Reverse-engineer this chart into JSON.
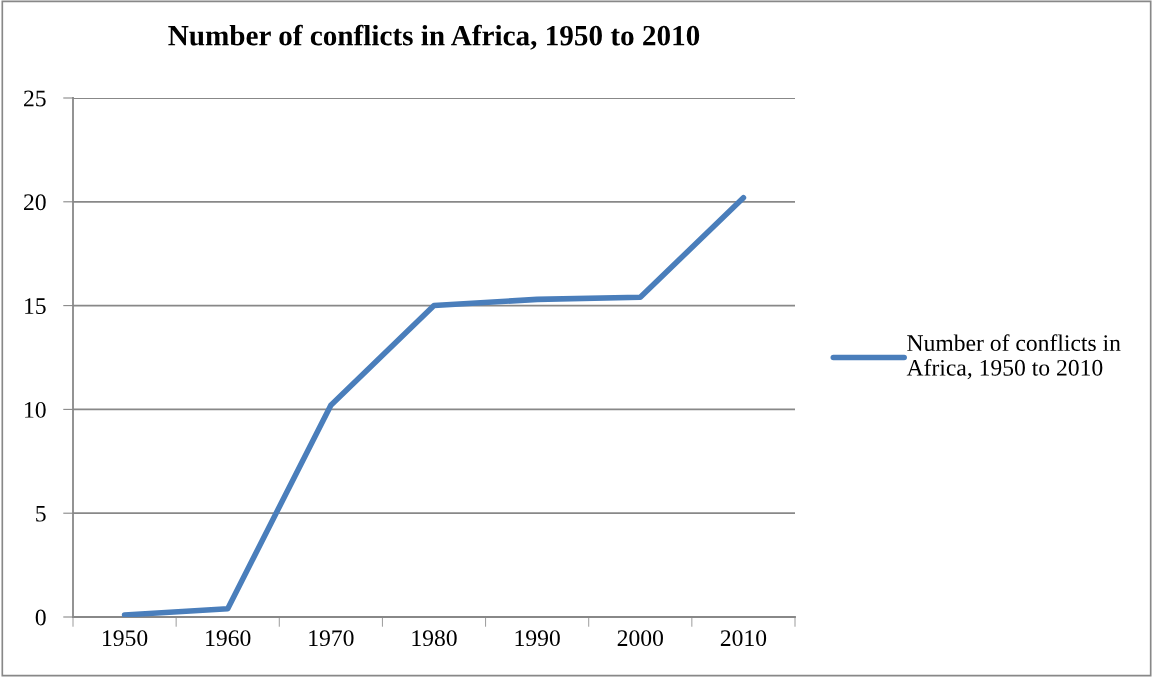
{
  "chart_data": {
    "type": "line",
    "title": "Number of conflicts in Africa, 1950 to 2010",
    "categories": [
      "1950",
      "1960",
      "1970",
      "1980",
      "1990",
      "2000",
      "2010"
    ],
    "series": [
      {
        "name": "Number of conflicts in Africa, 1950 to 2010",
        "color": "#4a7ebb",
        "values": [
          0.1,
          0.4,
          10.2,
          15,
          15.3,
          15.4,
          20.2
        ]
      }
    ],
    "ylim": [
      0,
      25
    ],
    "yticks": [
      0,
      5,
      10,
      15,
      20,
      25
    ],
    "grid": "y",
    "legend": "right",
    "marker": "none",
    "line_style": "solid"
  }
}
